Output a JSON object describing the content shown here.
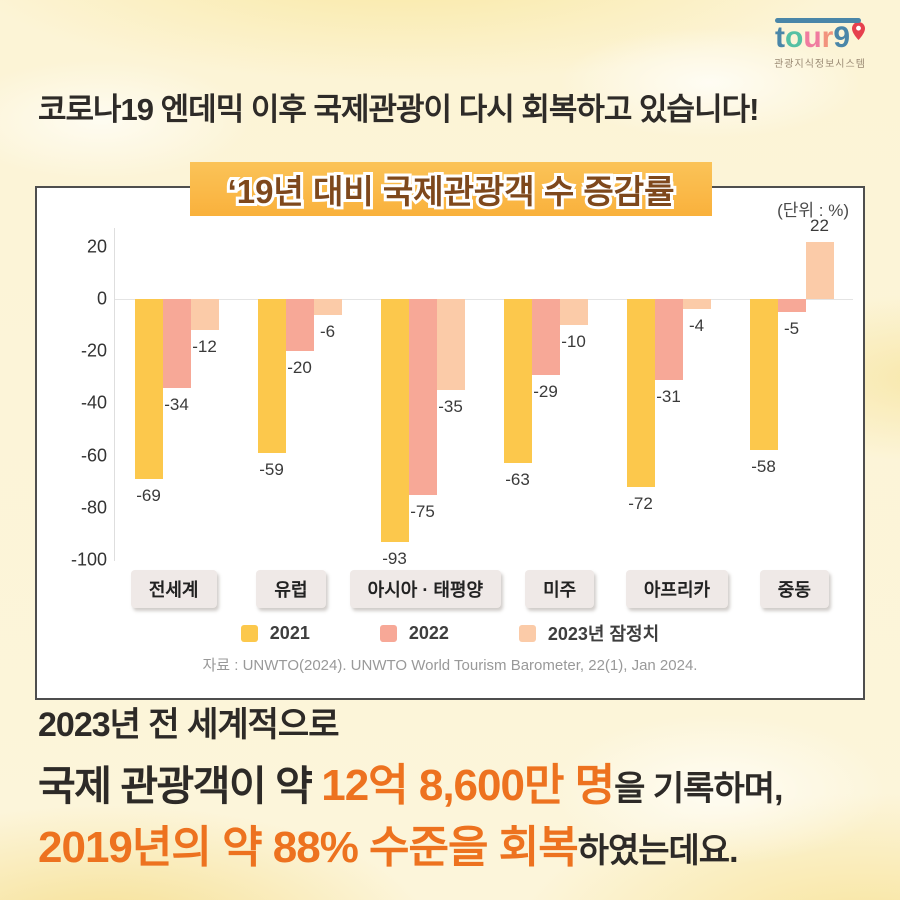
{
  "logo": {
    "letters": [
      {
        "ch": "t",
        "color": "#4A86A8"
      },
      {
        "ch": "o",
        "color": "#55C1A4"
      },
      {
        "ch": "u",
        "color": "#F07CA0"
      },
      {
        "ch": "r",
        "color": "#F2937D"
      },
      {
        "ch": "9",
        "color": "#4A86A8"
      }
    ],
    "bar_color": "#4A86A8",
    "pin_color": "#E6404E",
    "subtitle": "관광지식정보시스템"
  },
  "header": {
    "title": "코로나19 엔데믹 이후 국제관광이 다시 회복하고 있습니다!"
  },
  "chart_panel": {
    "badge_title": "‘19년 대비 국제관광객 수 증감률",
    "unit_label": "(단위 : %)",
    "source": "자료 : UNWTO(2024). UNWTO World Tourism Barometer, 22(1), Jan 2024."
  },
  "chart_data": {
    "type": "bar",
    "title": "‘19년 대비 국제관광객 수 증감률",
    "unit": "%",
    "categories": [
      "전세계",
      "유럽",
      "아시아 · 태평양",
      "미주",
      "아프리카",
      "중동"
    ],
    "series": [
      {
        "name": "2021",
        "color": "#FCC84C",
        "values": [
          -69,
          -59,
          -93,
          -63,
          -72,
          -58
        ]
      },
      {
        "name": "2022",
        "color": "#F7A897",
        "values": [
          -34,
          -20,
          -75,
          -29,
          -31,
          -5
        ]
      },
      {
        "name": "2023년 잠정치",
        "color": "#FBCBA8",
        "values": [
          -12,
          -6,
          -35,
          -10,
          -4,
          22
        ]
      }
    ],
    "yticks": [
      20,
      0,
      -20,
      -40,
      -60,
      -80,
      -100
    ],
    "ylim": [
      -100,
      27
    ],
    "grid": false,
    "legend_position": "bottom"
  },
  "footer": {
    "line1": "2023년 전 세계적으로",
    "line2_dark": "국제 관광객이 약 ",
    "line2_orange": "12억 8,600만 명",
    "line2_suffix": "을 기록하며,",
    "line3_orange": "2019년의 약 88% 수준을 회복",
    "line3_suffix": "하였는데요.",
    "accent_color": "#ED721F"
  }
}
